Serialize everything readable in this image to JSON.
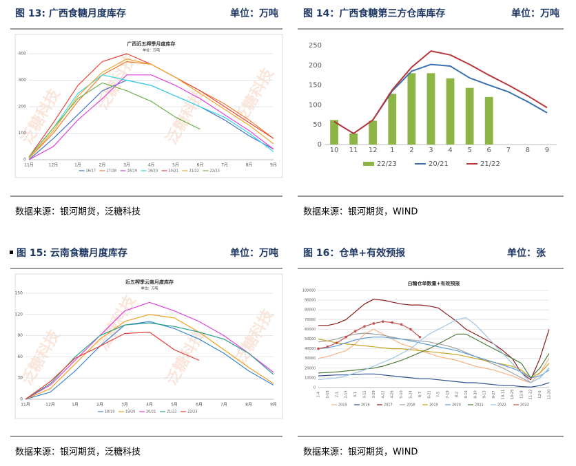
{
  "watermark": "泛糖科技",
  "panels": [
    {
      "caption": "图 13: 广西食糖月度库存",
      "unit": "单位：万吨",
      "source": "数据来源：银河期货，泛糖科技"
    },
    {
      "caption": "图 14：广西食糖第三方仓库库存",
      "unit": "单位：万吨",
      "source": "数据来源：银河期货，WIND"
    },
    {
      "caption": "图 15: 云南食糖月度库存",
      "unit": "单位：万吨",
      "source": "数据来源：银河期货，泛糖科技"
    },
    {
      "caption": "图 16：仓单+有效预报",
      "unit": "单位：张",
      "source": "数据来源：银河期货，WIND"
    }
  ],
  "chart_data": [
    {
      "type": "line",
      "title": "广西近五榨季月度库存",
      "subtitle": "单位：万吨",
      "categories": [
        "11月",
        "12月",
        "1月",
        "2月",
        "3月",
        "4月",
        "5月",
        "6月",
        "7月",
        "8月",
        "9月"
      ],
      "ylim": [
        0,
        400
      ],
      "yticks": [
        0,
        100,
        200,
        300,
        400
      ],
      "series": [
        {
          "name": "16/17",
          "color": "#4472c4",
          "values": [
            0,
            80,
            170,
            260,
            300,
            280,
            240,
            200,
            150,
            90,
            40
          ]
        },
        {
          "name": "17/18",
          "color": "#ed7d31",
          "values": [
            5,
            100,
            220,
            320,
            370,
            360,
            310,
            260,
            210,
            150,
            80
          ]
        },
        {
          "name": "18/19",
          "color": "#e040e0",
          "values": [
            0,
            50,
            150,
            230,
            320,
            320,
            280,
            230,
            170,
            110,
            40
          ]
        },
        {
          "name": "19/20",
          "color": "#33d6e6",
          "values": [
            10,
            120,
            250,
            320,
            300,
            280,
            240,
            200,
            160,
            100,
            30
          ]
        },
        {
          "name": "20/21",
          "color": "#e8443a",
          "values": [
            10,
            140,
            280,
            370,
            400,
            360,
            310,
            260,
            200,
            140,
            80
          ]
        },
        {
          "name": "21/22",
          "color": "#f0a830",
          "values": [
            5,
            110,
            240,
            330,
            380,
            360,
            310,
            250,
            190,
            130,
            60
          ]
        },
        {
          "name": "22/23",
          "color": "#70b050",
          "values": [
            10,
            120,
            230,
            290,
            260,
            220,
            160,
            115,
            null,
            null,
            null
          ]
        }
      ]
    },
    {
      "type": "bar",
      "categories": [
        "10",
        "11",
        "12",
        "1",
        "2",
        "3",
        "4",
        "5",
        "6",
        "7",
        "8",
        "9"
      ],
      "ylim": [
        0,
        250
      ],
      "yticks": [
        0,
        50,
        100,
        150,
        200,
        250
      ],
      "series": [
        {
          "name": "22/23",
          "color": "#8db545",
          "values": [
            62,
            28,
            60,
            128,
            180,
            180,
            167,
            143,
            120,
            null,
            null,
            null
          ]
        },
        {
          "name": "20/21",
          "color": "#3a6fb0",
          "type": "line",
          "values": [
            58,
            28,
            62,
            135,
            185,
            202,
            198,
            168,
            150,
            133,
            108,
            80
          ]
        },
        {
          "name": "21/22",
          "color": "#b8363a",
          "type": "line",
          "values": [
            58,
            28,
            62,
            138,
            195,
            236,
            226,
            202,
            175,
            150,
            123,
            93
          ]
        }
      ]
    },
    {
      "type": "line",
      "title": "近五榨季云南月度库存",
      "subtitle": "单位：万吨",
      "categories": [
        "11月",
        "12月",
        "1月",
        "2月",
        "3月",
        "4月",
        "5月",
        "6月",
        "7月",
        "8月",
        "9月"
      ],
      "ylim": [
        0,
        150
      ],
      "yticks": [
        0,
        30,
        60,
        90,
        120,
        150
      ],
      "series": [
        {
          "name": "18/19",
          "color": "#3a86d0",
          "values": [
            0,
            10,
            40,
            75,
            105,
            110,
            100,
            85,
            65,
            40,
            20
          ]
        },
        {
          "name": "19/20",
          "color": "#f0a020",
          "values": [
            0,
            15,
            50,
            85,
            110,
            120,
            115,
            95,
            70,
            45,
            22
          ]
        },
        {
          "name": "20/21",
          "color": "#e040e0",
          "values": [
            0,
            20,
            55,
            90,
            125,
            137,
            125,
            110,
            90,
            65,
            38
          ]
        },
        {
          "name": "21/22",
          "color": "#2aa08a",
          "values": [
            0,
            22,
            60,
            90,
            105,
            108,
            103,
            95,
            85,
            65,
            35
          ]
        },
        {
          "name": "22/23",
          "color": "#e83a3a",
          "values": [
            0,
            25,
            58,
            75,
            93,
            95,
            70,
            55,
            null,
            null,
            null
          ]
        }
      ]
    },
    {
      "type": "line",
      "title": "白糖仓单数量+有效预报",
      "categories": [
        "1-4",
        "1-18",
        "2-1",
        "2-15",
        "3-1",
        "3-15",
        "3-29",
        "4-12",
        "4-26",
        "5-10",
        "5-24",
        "6-7",
        "6-21",
        "7-5",
        "7-19",
        "8-2",
        "8-16",
        "8-30",
        "9-13",
        "9-27",
        "10-11",
        "10-25",
        "11-8",
        "11-22",
        "12-6",
        "12-20"
      ],
      "ylim": [
        0,
        100000
      ],
      "yticks": [
        0,
        10000,
        20000,
        30000,
        40000,
        50000,
        60000,
        70000,
        80000,
        90000,
        100000
      ],
      "series": [
        {
          "name": "2015",
          "color": "#f4b183",
          "values": [
            30000,
            32000,
            35000,
            38000,
            45000,
            55000,
            60000,
            55000,
            50000,
            45000,
            42000,
            38000,
            35000,
            32000,
            30000,
            28000,
            25000,
            22000,
            20000,
            18000,
            15000,
            12000,
            8000,
            5000,
            15000,
            30000
          ]
        },
        {
          "name": "2016",
          "color": "#2f4f8f",
          "values": [
            12000,
            12500,
            13000,
            13000,
            13500,
            14000,
            14000,
            13000,
            12000,
            11000,
            10000,
            9000,
            9000,
            8000,
            7000,
            6000,
            5000,
            5000,
            4000,
            3000,
            2000,
            2000,
            1000,
            500,
            2000,
            5000
          ]
        },
        {
          "name": "2017",
          "color": "#8b1a1a",
          "values": [
            64000,
            64000,
            66000,
            70000,
            78000,
            86000,
            91000,
            90000,
            88000,
            86000,
            85000,
            85000,
            84000,
            82000,
            75000,
            68000,
            60000,
            55000,
            50000,
            45000,
            38000,
            30000,
            15000,
            8000,
            30000,
            60000
          ]
        },
        {
          "name": "2018",
          "color": "#a0a0a0",
          "values": [
            47000,
            48000,
            50000,
            53000,
            55000,
            56000,
            55000,
            54000,
            52000,
            50000,
            49000,
            48000,
            47000,
            45000,
            43000,
            40000,
            36000,
            32000,
            28000,
            24000,
            20000,
            15000,
            10000,
            5000,
            10000,
            20000
          ]
        },
        {
          "name": "2019",
          "color": "#c9a227",
          "values": [
            50000,
            48000,
            46000,
            45000,
            44000,
            43000,
            42000,
            41000,
            40000,
            40000,
            39000,
            38000,
            37000,
            36000,
            35000,
            34000,
            32000,
            30000,
            28000,
            26000,
            24000,
            22000,
            18000,
            10000,
            15000,
            25000
          ]
        },
        {
          "name": "2020",
          "color": "#5b9bd5",
          "values": [
            40000,
            41000,
            43000,
            46000,
            49000,
            51000,
            52000,
            52000,
            51000,
            50000,
            48000,
            46000,
            44000,
            42000,
            40000,
            38000,
            35000,
            32000,
            29000,
            26000,
            23000,
            20000,
            16000,
            10000,
            12000,
            18000
          ]
        },
        {
          "name": "2021",
          "color": "#4e7a3a",
          "values": [
            15000,
            15500,
            16000,
            17000,
            18000,
            19000,
            20000,
            22000,
            25000,
            28000,
            32000,
            36000,
            40000,
            45000,
            50000,
            55000,
            55000,
            50000,
            45000,
            40000,
            35000,
            30000,
            25000,
            10000,
            20000,
            35000
          ]
        },
        {
          "name": "2022",
          "color": "#9dc3e6",
          "values": [
            8000,
            9000,
            10000,
            12000,
            15000,
            18000,
            22000,
            26000,
            30000,
            35000,
            40000,
            48000,
            55000,
            60000,
            65000,
            70000,
            72000,
            65000,
            55000,
            45000,
            35000,
            25000,
            15000,
            5000,
            10000,
            20000
          ]
        },
        {
          "name": "2023",
          "color": "#c0504d",
          "markers": true,
          "values": [
            40000,
            42000,
            46000,
            52000,
            58000,
            63000,
            66000,
            68000,
            67000,
            65000,
            60000,
            52000,
            null,
            null,
            null,
            null,
            null,
            null,
            null,
            null,
            null,
            null,
            null,
            null,
            null,
            null
          ]
        }
      ]
    }
  ]
}
